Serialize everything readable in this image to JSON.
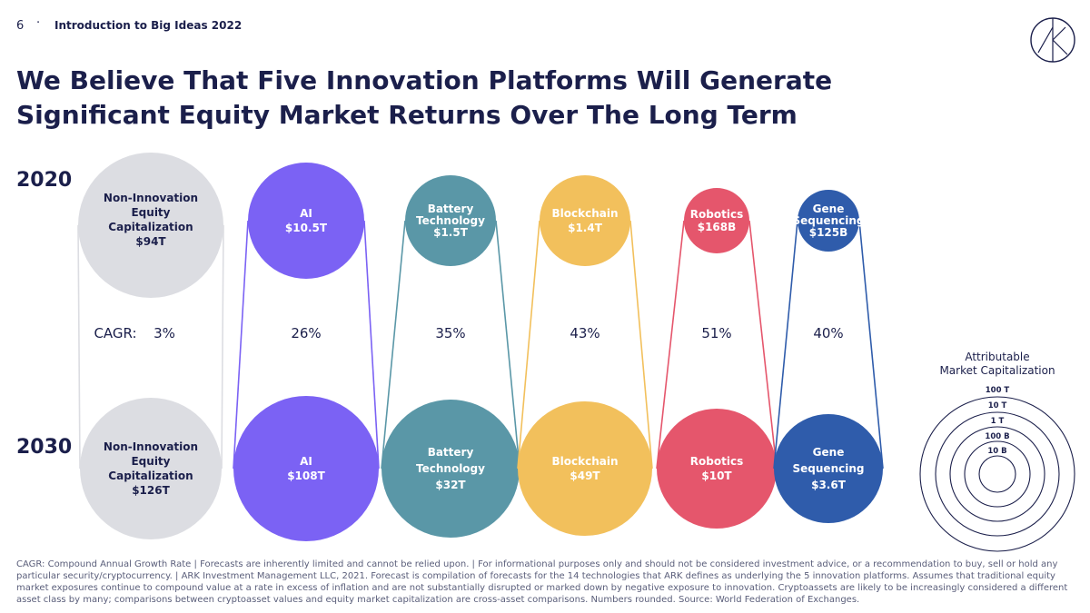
{
  "header": {
    "page_number": "6",
    "separator": "·",
    "deck_title": "Introduction to Big Ideas 2022"
  },
  "title_line1": "We Believe That Five Innovation Platforms Will Generate",
  "title_line2": "Significant Equity Market Returns Over The Long Term",
  "years": {
    "start": "2020",
    "end": "2030"
  },
  "cagr_label": "CAGR:",
  "platforms": [
    {
      "name_lines": [
        "Non-Innovation",
        "Equity",
        "Capitalization"
      ],
      "value2020": "$94T",
      "value2030": "$126T",
      "cagr": "3%",
      "color": "#dcdde2",
      "text_color": "#1b1f4b"
    },
    {
      "name_lines": [
        "AI"
      ],
      "value2020": "$10.5T",
      "value2030": "$108T",
      "cagr": "26%",
      "color": "#7b62f4",
      "text_color": "#ffffff"
    },
    {
      "name_lines": [
        "Battery",
        "Technology"
      ],
      "value2020": "$1.5T",
      "value2030": "$32T",
      "cagr": "35%",
      "color": "#5a97a7",
      "text_color": "#ffffff"
    },
    {
      "name_lines": [
        "Blockchain"
      ],
      "value2020": "$1.4T",
      "value2030": "$49T",
      "cagr": "43%",
      "color": "#f2c05c",
      "text_color": "#ffffff"
    },
    {
      "name_lines": [
        "Robotics"
      ],
      "value2020": "$168B",
      "value2030": "$10T",
      "cagr": "51%",
      "color": "#e5566c",
      "text_color": "#ffffff"
    },
    {
      "name_lines": [
        "Gene",
        "Sequencing"
      ],
      "value2020": "$125B",
      "value2030": "$3.6T",
      "cagr": "40%",
      "color": "#2f5cab",
      "text_color": "#ffffff"
    }
  ],
  "legend": {
    "title_line1": "Attributable",
    "title_line2": "Market Capitalization",
    "rings": [
      "100 T",
      "10 T",
      "1 T",
      "100 B",
      "10 B"
    ]
  },
  "footnote": "CAGR: Compound Annual Growth Rate  |  Forecasts are inherently limited and cannot be relied upon.  |  For informational purposes only and should not be considered investment advice, or a recommendation to buy, sell or hold any particular security/cryptocurrency.  |  ARK Investment Management LLC, 2021. Forecast is compilation of forecasts for the 14 technologies that ARK defines as underlying the 5 innovation platforms. Assumes that traditional equity market exposures continue to compound value at a rate in excess of inflation and are not substantially disrupted or marked down by negative exposure to innovation. Cryptoassets are likely to be increasingly considered a different asset class by many; comparisons between cryptoasset values and equity market capitalization are cross-asset comparisons. Numbers rounded. Source: World Federation of Exchanges.",
  "colors": {
    "navy": "#1b1f4b",
    "legend_stroke": "#1b1f4b"
  }
}
